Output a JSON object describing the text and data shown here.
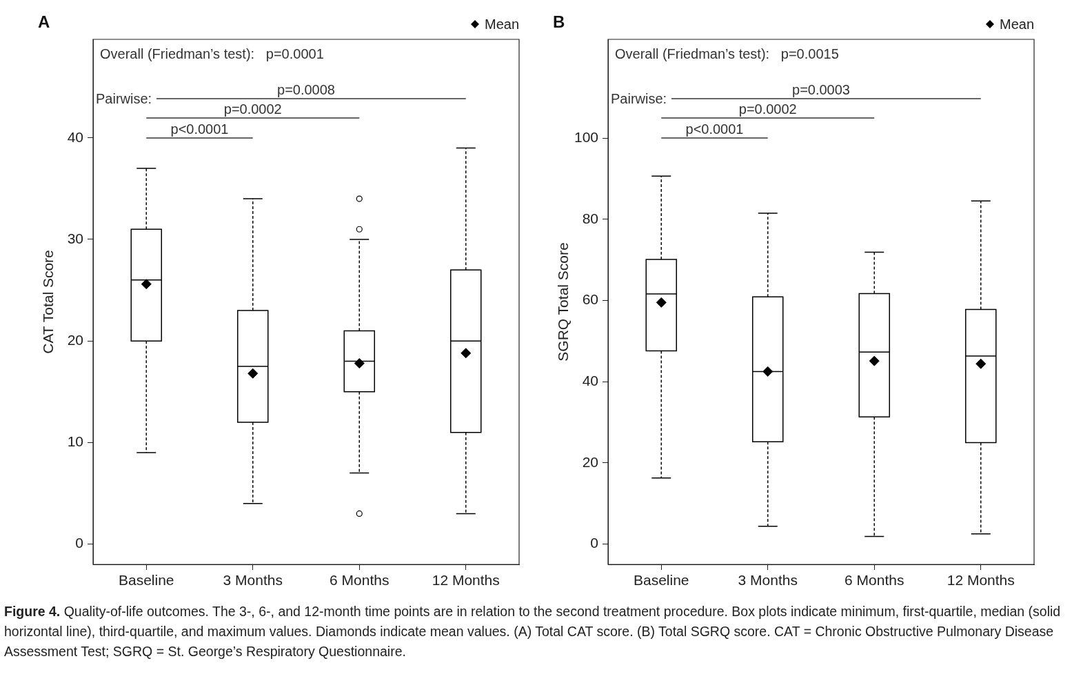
{
  "chart_data": [
    {
      "type": "box",
      "title": "A",
      "ylabel": "CAT Total Score",
      "categories": [
        "Baseline",
        "3 Months",
        "6 Months",
        "12 Months"
      ],
      "ylim": [
        -2,
        49.7
      ],
      "yticks": [
        0,
        10,
        20,
        30,
        40
      ],
      "grid": false,
      "legend": "top right",
      "series": [
        {
          "type": "box",
          "color": "#000000",
          "boxes": [
            {
              "low": 9,
              "q1": 20,
              "median": 26,
              "q3": 31,
              "high": 37
            },
            {
              "low": 4,
              "q1": 12,
              "median": 17.5,
              "q3": 23,
              "high": 34
            },
            {
              "low": 7,
              "q1": 15,
              "median": 18,
              "q3": 21,
              "high": 30,
              "outliers": [
                34,
                31,
                3
              ]
            },
            {
              "low": 3,
              "q1": 11,
              "median": 20,
              "q3": 27,
              "high": 39
            }
          ]
        },
        {
          "type": "scatter",
          "name": "Mean",
          "color": "#000000",
          "marker": "diamond",
          "x": [
            "Baseline",
            "3 Months",
            "6 Months",
            "12 Months"
          ],
          "values": [
            25.6,
            16.8,
            17.8,
            18.8
          ]
        }
      ],
      "annotations": [
        "Overall (Friedman’s test):   p=0.0001",
        "Pairwise:",
        "p=0.0008",
        "p=0.0002",
        "p<0.0001"
      ]
    },
    {
      "type": "box",
      "title": "B",
      "ylabel": "SGRQ Total Score",
      "categories": [
        "Baseline",
        "3 Months",
        "6 Months",
        "12 Months"
      ],
      "ylim": [
        -5,
        124.3
      ],
      "yticks": [
        0,
        20,
        40,
        60,
        80,
        100
      ],
      "grid": false,
      "legend": "top right",
      "series": [
        {
          "type": "box",
          "color": "#000000",
          "boxes": [
            {
              "low": 16.3,
              "q1": 47.6,
              "median": 61.6,
              "q3": 70.1,
              "high": 90.6
            },
            {
              "low": 4.4,
              "q1": 25.2,
              "median": 42.5,
              "q3": 60.9,
              "high": 81.5
            },
            {
              "low": 1.9,
              "q1": 31.3,
              "median": 47.3,
              "q3": 61.7,
              "high": 71.9
            },
            {
              "low": 2.5,
              "q1": 25,
              "median": 46.3,
              "q3": 57.8,
              "high": 84.5
            }
          ]
        },
        {
          "type": "scatter",
          "name": "Mean",
          "color": "#000000",
          "marker": "diamond",
          "x": [
            "Baseline",
            "3 Months",
            "6 Months",
            "12 Months"
          ],
          "values": [
            59.5,
            42.5,
            45.1,
            44.4
          ]
        }
      ],
      "annotations": [
        "Overall (Friedman’s test):   p=0.0015",
        "Pairwise:",
        "p=0.0003",
        "p=0.0002",
        "p<0.0001",
        "Figure 4. Quality-of-life outcomes. The 3-, 6-, and 12-month time points are in relation to the second treatment procedure. Box plots indicate minimum, first-quartile, median (solid horizontal line), third-quartile, and maximum values. Diamonds indicate mean values. (A) Total CAT score. (B) Total SGRQ score. CAT = Chronic Obstructive Pulmonary Disease Assessment Test; SGRQ = St. George’s Respiratory Questionnaire."
      ]
    }
  ]
}
